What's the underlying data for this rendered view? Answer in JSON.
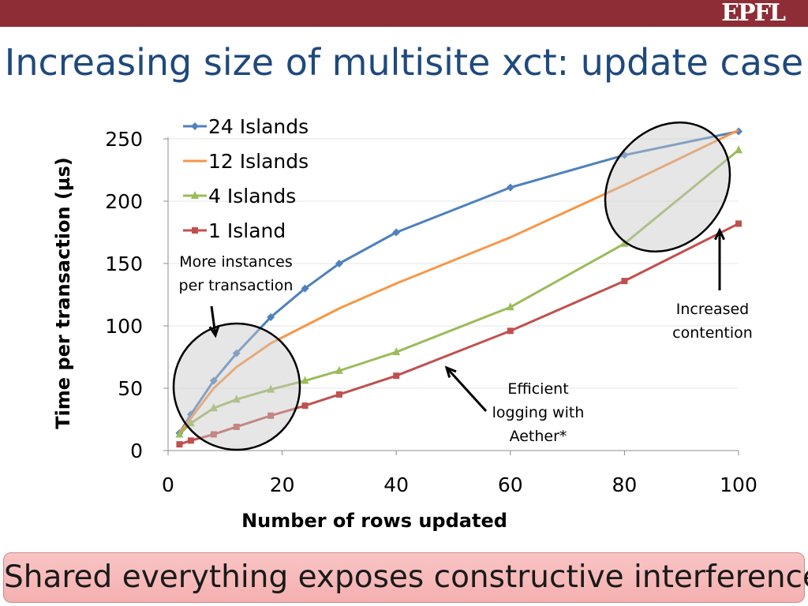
{
  "slide": {
    "title": "Increasing size of multisite xct: update case",
    "logo": "EPFL",
    "banner": "Shared everything exposes constructive interference"
  },
  "chart_data": {
    "type": "line",
    "xlabel": "Number of rows updated",
    "ylabel": "Time per transaction (µs)",
    "xlim": [
      0,
      100
    ],
    "ylim": [
      0,
      250
    ],
    "xticks": [
      0,
      20,
      40,
      60,
      80,
      100
    ],
    "yticks": [
      0,
      50,
      100,
      150,
      200,
      250
    ],
    "legend_position": "top-left",
    "grid": true,
    "series": [
      {
        "name": "24 Islands",
        "color": "#4f81bd",
        "marker": "diamond",
        "x": [
          2,
          4,
          8,
          12,
          18,
          24,
          30,
          40,
          60,
          80,
          100
        ],
        "y": [
          14,
          29,
          56,
          78,
          107,
          130,
          150,
          175,
          211,
          237,
          256
        ]
      },
      {
        "name": "12 Islands",
        "color": "#f79646",
        "marker": "none",
        "x": [
          2,
          4,
          8,
          12,
          18,
          24,
          30,
          40,
          60,
          80,
          100
        ],
        "y": [
          14,
          26,
          50,
          67,
          86,
          100,
          114,
          134,
          171,
          213,
          257
        ]
      },
      {
        "name": "4 Islands",
        "color": "#9bbb59",
        "marker": "triangle",
        "x": [
          2,
          4,
          8,
          12,
          18,
          24,
          30,
          40,
          60,
          80,
          100
        ],
        "y": [
          13,
          22,
          34,
          41,
          49,
          56,
          64,
          79,
          115,
          166,
          241
        ]
      },
      {
        "name": "1 Island",
        "color": "#c0504d",
        "marker": "square",
        "x": [
          2,
          4,
          8,
          12,
          18,
          24,
          30,
          40,
          60,
          80,
          100
        ],
        "y": [
          5,
          8,
          13,
          19,
          28,
          36,
          45,
          60,
          96,
          136,
          182
        ]
      }
    ],
    "annotations": [
      {
        "lines": [
          "More instances",
          "per transaction"
        ]
      },
      {
        "lines": [
          "Increased",
          "contention"
        ]
      },
      {
        "lines": [
          "Efficient",
          "logging with",
          "Aether*"
        ]
      }
    ]
  }
}
